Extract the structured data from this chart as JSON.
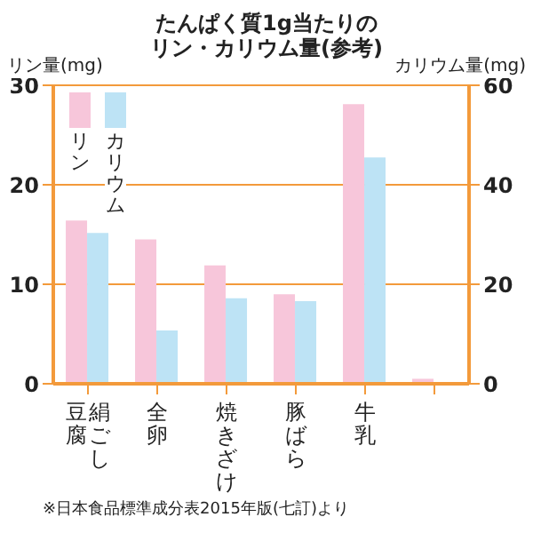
{
  "chart_data": {
    "type": "bar",
    "title": "たんぱく質1g当たりのリン・カリウム量(参考)",
    "ylabel": "リン量(mg)",
    "y2label": "カリウム量(mg)",
    "categories": [
      "絹ごし豆腐",
      "全卵",
      "焼きざけ",
      "豚ばら",
      "牛乳",
      null
    ],
    "series": [
      {
        "name": "リン",
        "color": "#f7c6da",
        "values": [
          16.4,
          14.5,
          11.9,
          9.0,
          28.1,
          0.5
        ]
      },
      {
        "name": "カリウム",
        "color": "#bde3f5",
        "axis": "y2",
        "values": [
          30.3,
          10.7,
          17.2,
          16.6,
          45.5,
          null
        ]
      }
    ],
    "ylim": [
      0,
      30
    ],
    "yticks": [
      0,
      10,
      20,
      30
    ],
    "y2lim": [
      0,
      60
    ],
    "y2ticks": [
      0,
      20,
      40,
      60
    ],
    "grid": "y",
    "legend": "top left",
    "annotations": [
      "※日本食品標準成分表2015年版(七訂)より"
    ]
  }
}
